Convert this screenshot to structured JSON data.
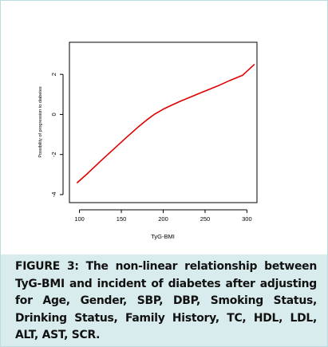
{
  "colors": {
    "line": "#e00000",
    "axis": "#000000",
    "caption_background": "#d8eced",
    "border": "#bcdde0"
  },
  "caption": "FIGURE 3: The non-linear relationship between TyG-BMI and incident of diabetes after adjusting for Age, Gender, SBP, DBP, Smoking Status, Drinking Status, Family History, TC, HDL, LDL, ALT, AST, SCR.",
  "chart_data": {
    "type": "line",
    "title": "",
    "xlabel": "TyG-BMI",
    "ylabel": "Possibility of progression to diabetes",
    "xlim": [
      88,
      312
    ],
    "ylim": [
      -4.4,
      3.6
    ],
    "x_ticks": [
      100,
      150,
      200,
      250,
      300
    ],
    "x_tick_labels": [
      "100",
      "150",
      "200",
      "250",
      "300"
    ],
    "y_ticks": [
      -4,
      -2,
      0,
      2
    ],
    "y_tick_labels": [
      "-4",
      "-2",
      "0",
      "2"
    ],
    "grid": false,
    "legend": "none",
    "series": [
      {
        "x": [
          97,
          110,
          125,
          140,
          155,
          170,
          180,
          190,
          200,
          210,
          220,
          235,
          250,
          265,
          280,
          295,
          309
        ],
        "y": [
          -3.42,
          -2.93,
          -2.34,
          -1.76,
          -1.19,
          -0.63,
          -0.29,
          0.02,
          0.26,
          0.46,
          0.65,
          0.91,
          1.17,
          1.42,
          1.7,
          1.96,
          2.5
        ]
      }
    ]
  }
}
